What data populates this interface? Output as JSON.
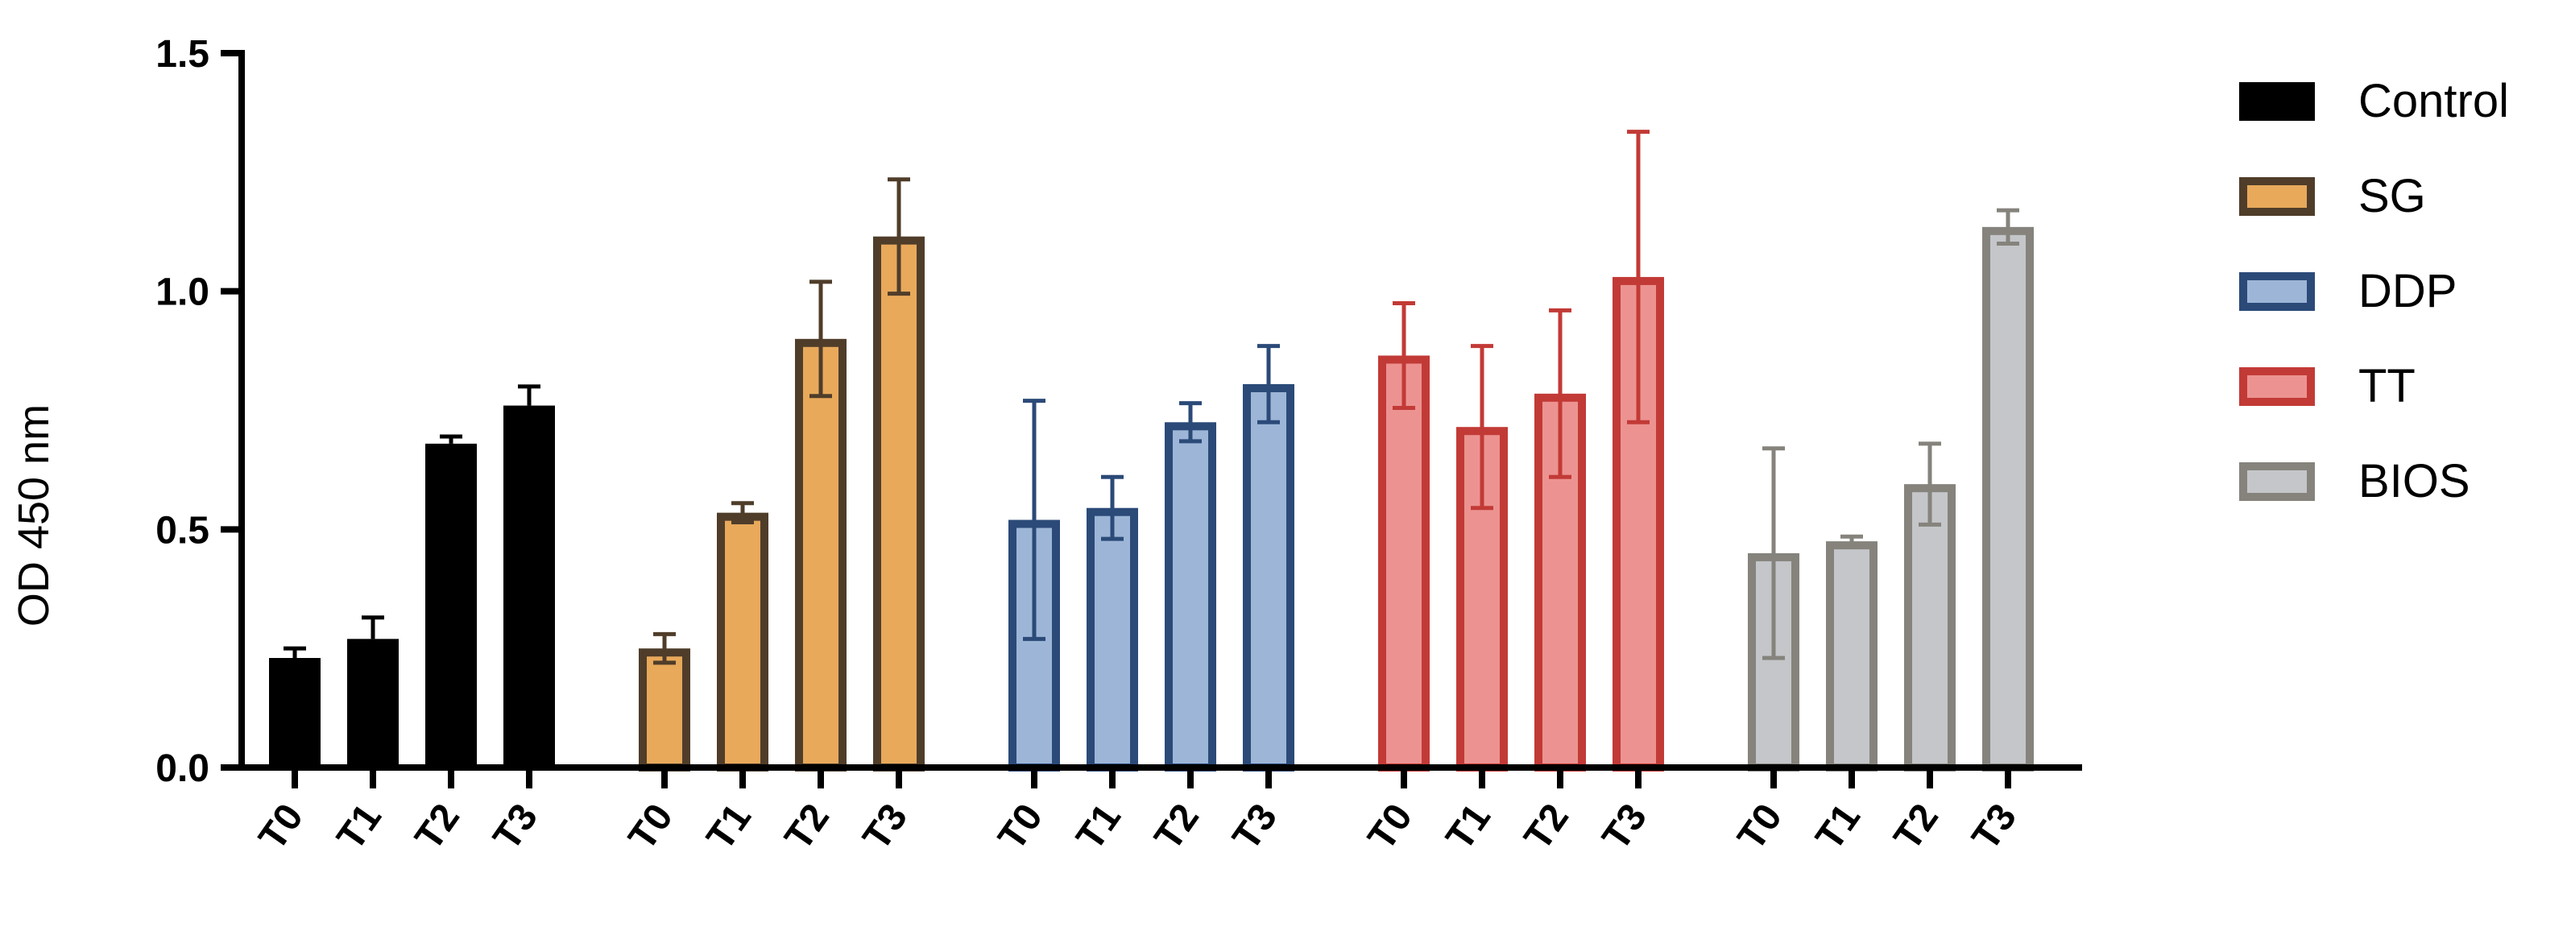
{
  "chart_data": {
    "type": "bar",
    "title": "",
    "xlabel": "",
    "ylabel": "OD 450 nm",
    "ylim": [
      0,
      1.5
    ],
    "yticks": [
      "0.0",
      "0.5",
      "1.0",
      "1.5"
    ],
    "grid": false,
    "legend_position": "right",
    "categories": [
      "T0",
      "T1",
      "T2",
      "T3"
    ],
    "series": [
      {
        "name": "Control",
        "values": [
          0.23,
          0.27,
          0.68,
          0.76
        ],
        "errors": [
          0.02,
          0.045,
          0.015,
          0.04
        ],
        "fill": "#000000",
        "stroke": "#000000",
        "error_color": "#000000"
      },
      {
        "name": "SG",
        "values": [
          0.25,
          0.535,
          0.9,
          1.115
        ],
        "errors": [
          0.03,
          0.02,
          0.12,
          0.12
        ],
        "fill": "#e8a95b",
        "stroke": "#4f3d2a",
        "error_color": "#4f3d2a"
      },
      {
        "name": "DDP",
        "values": [
          0.52,
          0.545,
          0.725,
          0.805
        ],
        "errors": [
          0.25,
          0.065,
          0.04,
          0.08
        ],
        "fill": "#9db6d7",
        "stroke": "#2b4a78",
        "error_color": "#2b4a78"
      },
      {
        "name": "TT",
        "values": [
          0.865,
          0.715,
          0.785,
          1.03
        ],
        "errors": [
          0.11,
          0.17,
          0.175,
          0.305
        ],
        "fill": "#ec9391",
        "stroke": "#c23a36",
        "error_color": "#c23a36"
      },
      {
        "name": "BIOS",
        "values": [
          0.45,
          0.475,
          0.595,
          1.135
        ],
        "errors": [
          0.22,
          0.01,
          0.085,
          0.035
        ],
        "fill": "#c4c6c9",
        "stroke": "#85837c",
        "error_color": "#85837c"
      }
    ]
  }
}
